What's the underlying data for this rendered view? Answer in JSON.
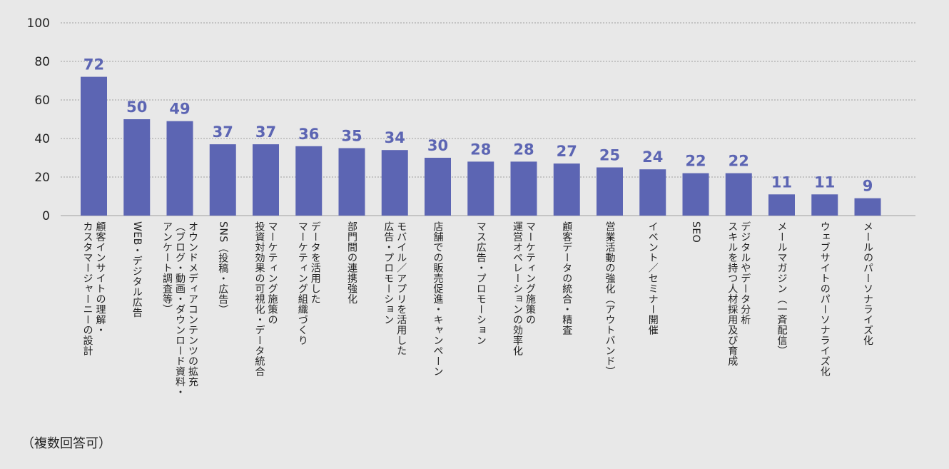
{
  "chart_data": {
    "type": "bar",
    "title": "",
    "xlabel": "",
    "ylabel": "",
    "ylim": [
      0,
      100
    ],
    "yticks": [
      0,
      20,
      40,
      60,
      80,
      100
    ],
    "grid": true,
    "bar_color": "#5c65b3",
    "label_color": "#5c65b3",
    "categories": [
      "顧客インサイトの理解・\nカスタマージャーニーの設計",
      "WEB・デジタル広告",
      "オウンドメディアコンテンツの拡充\n（ブログ・動画・ダウンロード資料・\nアンケート調査等）",
      "SNS（投稿・広告）",
      "マーケティング施策の\n投資対効果の可視化・データ統合",
      "データを活用した\nマーケティング組織づくり",
      "部門間の連携強化",
      "モバイル／アプリを活用した\n広告・プロモーション",
      "店舗での販売促進・キャンペーン",
      "マス広告・プロモーション",
      "マーケティング施策の\n運営オペレーションの効率化",
      "顧客データの統合・精査",
      "営業活動の強化（アウトバンド）",
      "イベント／セミナー開催",
      "SEO",
      "デジタルやデータ分析\nスキルを持つ人材採用及び育成",
      "メールマガジン（一斉配信）",
      "ウェブサイトのパーソナライズ化",
      "メールのパーソナライズ化"
    ],
    "values": [
      72,
      50,
      49,
      37,
      37,
      36,
      35,
      34,
      30,
      28,
      28,
      27,
      25,
      24,
      22,
      22,
      11,
      11,
      9
    ]
  },
  "note": "（複数回答可）"
}
